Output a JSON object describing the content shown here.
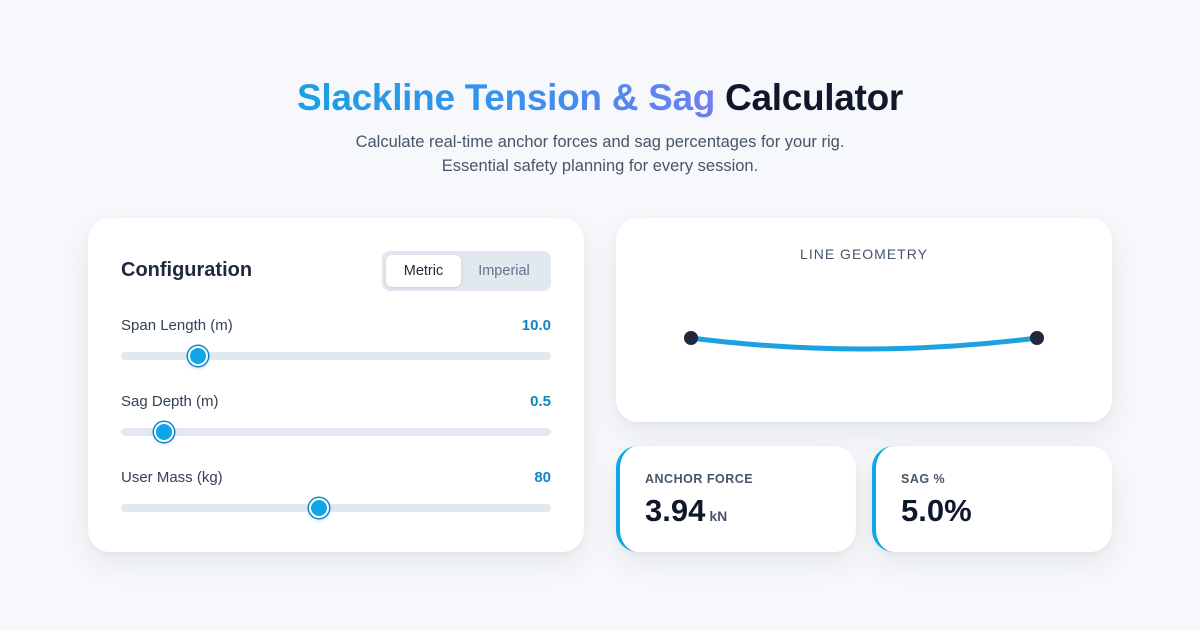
{
  "header": {
    "title_gradient": "Slackline Tension & Sag",
    "title_plain": "Calculator",
    "subtitle_line1": "Calculate real-time anchor forces and sag percentages for your rig.",
    "subtitle_line2": "Essential safety planning for every session."
  },
  "config": {
    "title": "Configuration",
    "units": {
      "options": [
        "Metric",
        "Imperial"
      ],
      "selected": "Metric"
    },
    "fields": [
      {
        "label": "Span Length (m)",
        "value": "10.0",
        "level": 0.18
      },
      {
        "label": "Sag Depth (m)",
        "value": "0.5",
        "level": 0.1
      },
      {
        "label": "User Mass (kg)",
        "value": "80",
        "level": 0.46
      }
    ]
  },
  "geometry": {
    "label": "LINE GEOMETRY"
  },
  "stats": {
    "anchor": {
      "label": "ANCHOR FORCE",
      "value": "3.94",
      "unit": "kN"
    },
    "sag": {
      "label": "SAG %",
      "value": "5.0%"
    }
  },
  "colors": {
    "accent": "#0ea5e9",
    "value_text": "#0e86c4",
    "anchor_dot": "#1e293b"
  }
}
